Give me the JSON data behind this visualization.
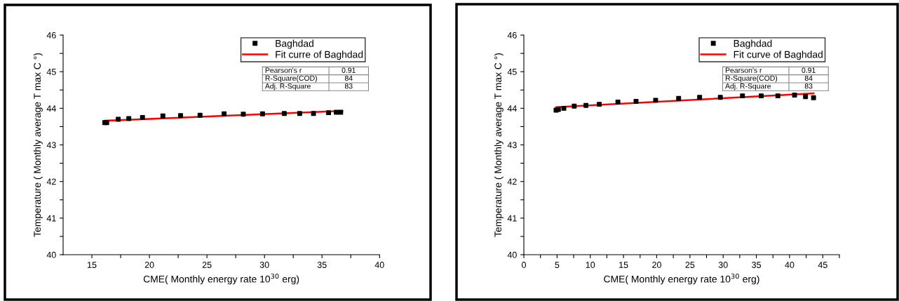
{
  "chart_data": [
    {
      "type": "scatter",
      "xlabel": "CME( Monthly energy rate 10$^{30}$ erg)",
      "ylabel": "Temperature ( Monthly average T max C °)",
      "xlim": [
        12.5,
        40
      ],
      "xticks": [
        15,
        {
          "value": 17.5,
          "label": null
        },
        20,
        {
          "value": 22.5,
          "label": null
        },
        25,
        {
          "value": 27.5,
          "label": null
        },
        30,
        {
          "value": 32.5,
          "label": null
        },
        35,
        {
          "value": 37.5,
          "label": null
        },
        40
      ],
      "ylim": [
        40,
        46
      ],
      "yticks": [
        40,
        {
          "value": 40.5,
          "label": null
        },
        41,
        {
          "value": 41.5,
          "label": null
        },
        42,
        {
          "value": 42.5,
          "label": null
        },
        43,
        {
          "value": 43.5,
          "label": null
        },
        44,
        {
          "value": 44.5,
          "label": null
        },
        45,
        {
          "value": 45.5,
          "label": null
        },
        46
      ],
      "legend": "top right",
      "grid": false,
      "series": [
        {
          "name": "Baghdad",
          "type": "scatter",
          "marker": "square",
          "color": "#000000",
          "x": [
            16.12,
            16.29,
            17.29,
            18.21,
            19.4,
            21.17,
            22.71,
            24.4,
            26.49,
            28.16,
            29.83,
            31.72,
            33.06,
            34.26,
            35.57,
            36.24,
            36.62
          ],
          "values": [
            43.61,
            43.61,
            43.7,
            43.72,
            43.75,
            43.79,
            43.8,
            43.81,
            43.85,
            43.84,
            43.85,
            43.86,
            43.86,
            43.86,
            43.88,
            43.89,
            43.89
          ]
        },
        {
          "name": "Fit curre of Baghdad",
          "type": "line",
          "line_style": "solid",
          "color": "#ff0000",
          "x": [
            16.12,
            36.77
          ],
          "values": [
            43.66,
            43.93
          ]
        }
      ],
      "annotations": [
        "Pearson's r",
        "0.91",
        "R-Square(COD)",
        "84",
        "Adj. R-Square",
        "83"
      ]
    },
    {
      "type": "scatter",
      "xlabel": "CME( Monthly energy rate 10$^{30}$ erg)",
      "ylabel": "Temperature ( Monthly average T max C °)",
      "xlim": [
        0,
        47.5
      ],
      "xticks": [
        0,
        {
          "value": 2.5,
          "label": null
        },
        5,
        {
          "value": 7.5,
          "label": null
        },
        10,
        {
          "value": 12.5,
          "label": null
        },
        15,
        {
          "value": 17.5,
          "label": null
        },
        20,
        {
          "value": 22.5,
          "label": null
        },
        25,
        {
          "value": 27.5,
          "label": null
        },
        30,
        {
          "value": 32.5,
          "label": null
        },
        35,
        {
          "value": 37.5,
          "label": null
        },
        40,
        {
          "value": 42.5,
          "label": null
        },
        45,
        {
          "value": 47.5,
          "label": null
        }
      ],
      "ylim": [
        40,
        46
      ],
      "yticks": [
        40,
        {
          "value": 40.5,
          "label": null
        },
        41,
        {
          "value": 41.5,
          "label": null
        },
        42,
        {
          "value": 42.5,
          "label": null
        },
        43,
        {
          "value": 43.5,
          "label": null
        },
        44,
        {
          "value": 44.5,
          "label": null
        },
        45,
        {
          "value": 45.5,
          "label": null
        },
        46
      ],
      "legend": "top right",
      "grid": false,
      "series": [
        {
          "name": "Baghdad",
          "type": "scatter",
          "marker": "square",
          "color": "#000000",
          "x": [
            4.85,
            5.2,
            6.02,
            7.58,
            9.35,
            11.35,
            14.16,
            16.89,
            19.84,
            23.3,
            26.46,
            29.58,
            32.91,
            35.73,
            38.24,
            40.75,
            42.4,
            43.61
          ],
          "values": [
            43.95,
            43.97,
            44.0,
            44.06,
            44.08,
            44.11,
            44.17,
            44.19,
            44.22,
            44.27,
            44.3,
            44.3,
            44.34,
            44.34,
            44.34,
            44.36,
            44.32,
            44.29
          ]
        },
        {
          "name": "Fit curve of Baghdad",
          "type": "line",
          "line_style": "solid",
          "color": "#ff0000",
          "x": [
            4.85,
            43.61
          ],
          "values": [
            44.03,
            44.41
          ]
        }
      ],
      "annotations": [
        "Pearson's r",
        "0.91",
        "R-Square(COD)",
        "84",
        "Adj. R-Square",
        "83"
      ]
    }
  ]
}
